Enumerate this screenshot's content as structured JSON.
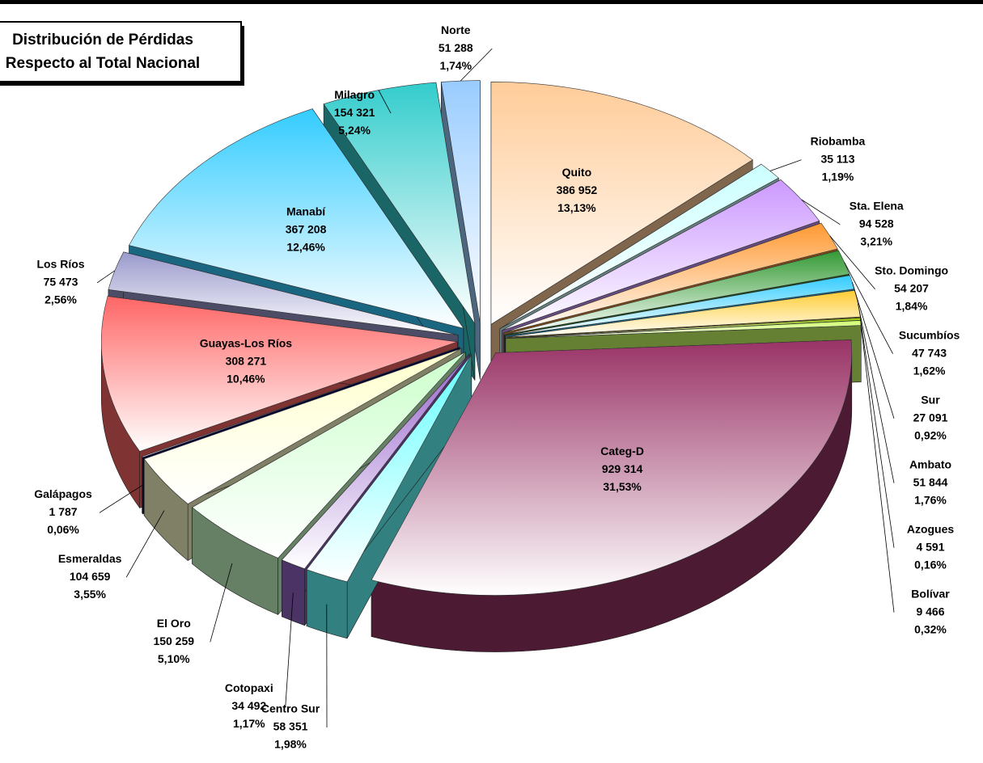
{
  "chart_data": {
    "type": "pie3d",
    "title": "Distribución de Pérdidas",
    "subtitle": "Respecto al Total Nacional",
    "categories": [
      "Quito",
      "Riobamba",
      "Sta. Elena",
      "Sto. Domingo",
      "Sucumbíos",
      "Sur",
      "Ambato",
      "Azogues",
      "Bolívar",
      "Categ-D",
      "Centro Sur",
      "Cotopaxi",
      "El Oro",
      "Esmeraldas",
      "Galápagos",
      "Guayas-Los Ríos",
      "Los Ríos",
      "Manabí",
      "Milagro",
      "Norte"
    ],
    "values": [
      386952,
      35113,
      94528,
      54207,
      47743,
      27091,
      51844,
      4591,
      9466,
      929314,
      58351,
      34492,
      150259,
      104659,
      1787,
      308271,
      75473,
      367208,
      154321,
      51288
    ],
    "value_labels": [
      "386 952",
      "35 113",
      "94 528",
      "54 207",
      "47 743",
      "27 091",
      "51 844",
      "4 591",
      "9 466",
      "929 314",
      "58 351",
      "34 492",
      "150 259",
      "104 659",
      "1 787",
      "308 271",
      "75 473",
      "367 208",
      "154 321",
      "51 288"
    ],
    "percentages": [
      13.13,
      1.19,
      3.21,
      1.84,
      1.62,
      0.92,
      1.76,
      0.16,
      0.32,
      31.53,
      1.98,
      1.17,
      5.1,
      3.55,
      0.06,
      10.46,
      2.56,
      12.46,
      5.24,
      1.74
    ],
    "percentage_labels": [
      "13,13%",
      "1,19%",
      "3,21%",
      "1,84%",
      "1,62%",
      "0,92%",
      "1,76%",
      "0,16%",
      "0,32%",
      "31,53%",
      "1,98%",
      "1,17%",
      "5,10%",
      "3,55%",
      "0,06%",
      "10,46%",
      "2,56%",
      "12,46%",
      "5,24%",
      "1,74%"
    ],
    "colors": [
      "#ffcc99",
      "#ccffff",
      "#cc99ff",
      "#ff9933",
      "#339933",
      "#33ccff",
      "#ffcc33",
      "#99cc00",
      "#ccff66",
      "#993366",
      "#66ffff",
      "#9966cc",
      "#ccffcc",
      "#ffffcc",
      "#000066",
      "#ff6666",
      "#9999cc",
      "#33ccff",
      "#33cccc",
      "#99ccff"
    ]
  }
}
